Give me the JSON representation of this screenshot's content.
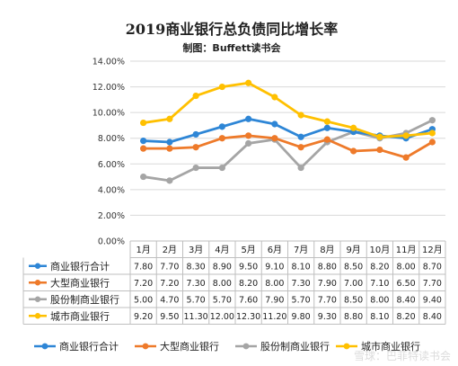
{
  "chart_data": {
    "type": "line",
    "title": "2019商业银行总负债同比增长率",
    "subtitle": "制图：Buffett读书会",
    "categories": [
      "1月",
      "2月",
      "3月",
      "4月",
      "5月",
      "6月",
      "7月",
      "8月",
      "9月",
      "10月",
      "11月",
      "12月"
    ],
    "yticks": [
      "0.00%",
      "2.00%",
      "4.00%",
      "6.00%",
      "8.00%",
      "10.00%",
      "12.00%",
      "14.00%"
    ],
    "ylim": [
      0,
      14
    ],
    "grid": true,
    "legend_position": "bottom",
    "series": [
      {
        "name": "商业银行合计",
        "color": "#2E86D6",
        "values": [
          7.8,
          7.7,
          8.3,
          8.9,
          9.5,
          9.1,
          8.1,
          8.8,
          8.5,
          8.2,
          8.0,
          8.7
        ],
        "labels": [
          "7.80",
          "7.70",
          "8.30",
          "8.90",
          "9.50",
          "9.10",
          "8.10",
          "8.80",
          "8.50",
          "8.20",
          "8.00",
          "8.70"
        ]
      },
      {
        "name": "大型商业银行",
        "color": "#EE7A2A",
        "values": [
          7.2,
          7.2,
          7.3,
          8.0,
          8.2,
          8.0,
          7.3,
          7.9,
          7.0,
          7.1,
          6.5,
          7.7
        ],
        "labels": [
          "7.20",
          "7.20",
          "7.30",
          "8.00",
          "8.20",
          "8.00",
          "7.30",
          "7.90",
          "7.00",
          "7.10",
          "6.50",
          "7.70"
        ]
      },
      {
        "name": "股份制商业银行",
        "color": "#A5A5A5",
        "values": [
          5.0,
          4.7,
          5.7,
          5.7,
          7.6,
          7.9,
          5.7,
          7.7,
          8.5,
          8.0,
          8.4,
          9.4
        ],
        "labels": [
          "5.00",
          "4.70",
          "5.70",
          "5.70",
          "7.60",
          "7.90",
          "5.70",
          "7.70",
          "8.50",
          "8.00",
          "8.40",
          "9.40"
        ]
      },
      {
        "name": "城市商业银行",
        "color": "#FFC000",
        "values": [
          9.2,
          9.5,
          11.3,
          12.0,
          12.3,
          11.2,
          9.8,
          9.3,
          8.8,
          8.1,
          8.2,
          8.4
        ],
        "labels": [
          "9.20",
          "9.50",
          "11.30",
          "12.00",
          "12.30",
          "11.20",
          "9.80",
          "9.30",
          "8.80",
          "8.10",
          "8.20",
          "8.40"
        ]
      }
    ]
  },
  "watermark": "雪球：巴菲特读书会"
}
